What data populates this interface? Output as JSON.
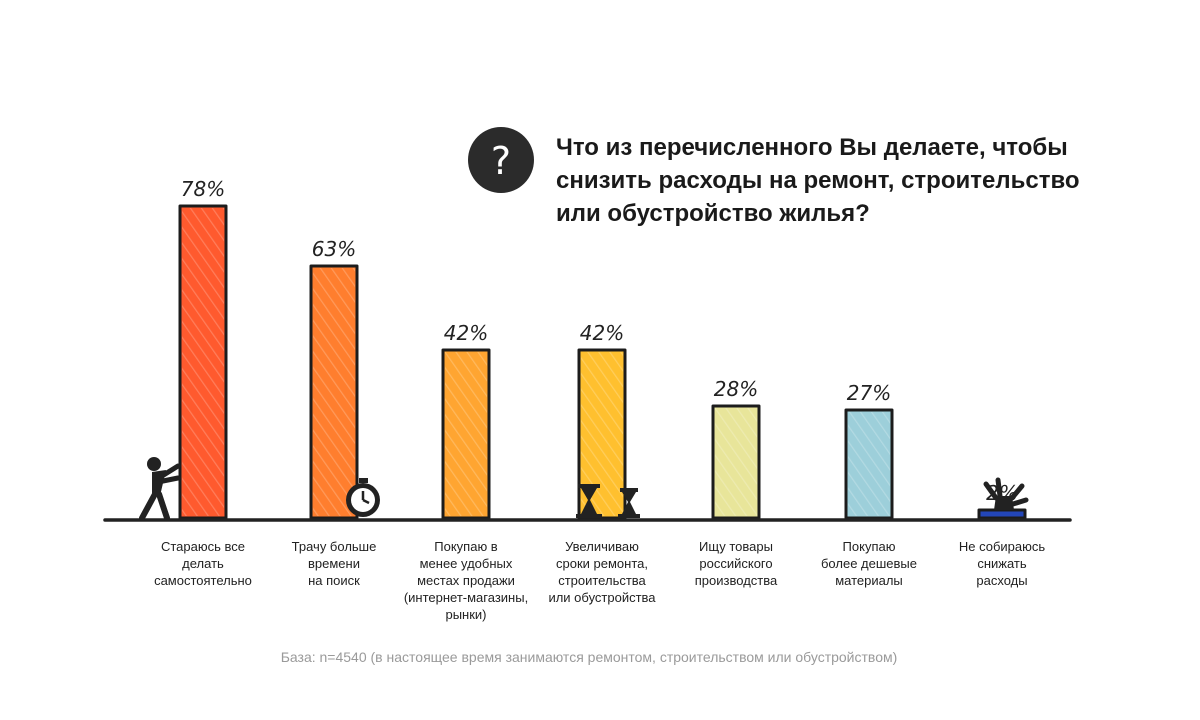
{
  "chart_data": {
    "type": "bar",
    "title": "Что из перечисленного Вы делаете, чтобы снизить расходы на ремонт, строительство или обустройство жилья?",
    "title_lines": [
      "Что из перечисленного Вы делаете, чтобы",
      "снизить расходы на ремонт, строительство",
      "или обустройство жилья?"
    ],
    "categories": [
      "Стараюсь все делать самостоятельно",
      "Трачу больше времени на поиск",
      "Покупаю в менее удобных местах продажи (интернет-магазины, рынки)",
      "Увеличиваю сроки ремонта, строительства или обустройства",
      "Ищу товары российского производства",
      "Покупаю более дешевые материалы",
      "Не собираюсь снижать расходы"
    ],
    "category_lines": [
      [
        "Стараюсь все",
        "делать",
        "самостоятельно"
      ],
      [
        "Трачу больше",
        "времени",
        "на поиск"
      ],
      [
        "Покупаю в",
        "менее удобных",
        "местах продажи",
        "(интернет-магазины,",
        "рынки)"
      ],
      [
        "Увеличиваю",
        "сроки ремонта,",
        "строительства",
        "или обустройства"
      ],
      [
        "Ищу товары",
        "российского",
        "производства"
      ],
      [
        "Покупаю",
        "более дешевые",
        "материалы"
      ],
      [
        "Не собираюсь",
        "снижать",
        "расходы"
      ]
    ],
    "values": [
      78,
      63,
      42,
      42,
      28,
      27,
      2
    ],
    "value_labels": [
      "78%",
      "63%",
      "42%",
      "42%",
      "28%",
      "27%",
      "2%"
    ],
    "unit": "%",
    "ylim": [
      0,
      100
    ],
    "grid": false,
    "legend": "none",
    "colors": [
      "#ff5a2e",
      "#ff7e2e",
      "#ffa531",
      "#ffc02f",
      "#e8e59a",
      "#9dcfda",
      "#2346b8"
    ],
    "base_note": "База: n=4540 (в настоящее время занимаются ремонтом, строительством или обустройством)"
  },
  "icons": {
    "question": "question-circle-icon",
    "question_glyph": "?",
    "bar_decorations": [
      "pushing-person-icon",
      "stopwatch-icon",
      "",
      "hourglass-icon",
      "",
      "",
      "hand-gesture-icon"
    ]
  }
}
